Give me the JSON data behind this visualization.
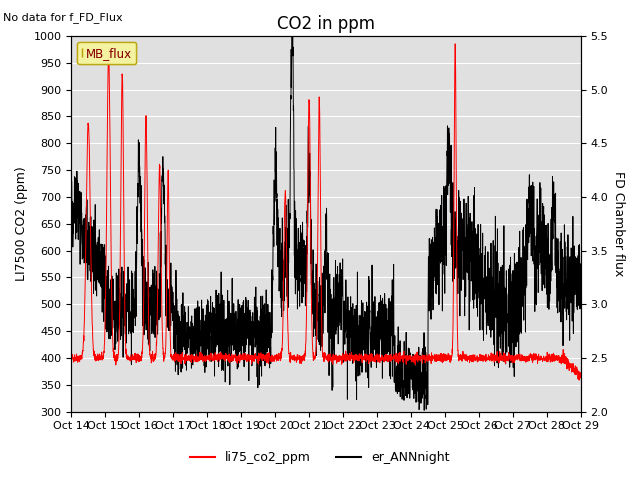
{
  "title": "CO2 in ppm",
  "ylabel_left": "LI7500 CO2 (ppm)",
  "ylabel_right": "FD Chamber flux",
  "xlabel": "",
  "ylim_left": [
    300,
    1000
  ],
  "ylim_right": [
    2.0,
    5.5
  ],
  "xtick_labels": [
    "Oct 14",
    "Oct 15",
    "Oct 16",
    "Oct 17",
    "Oct 18",
    "Oct 19",
    "Oct 20",
    "Oct 21",
    "Oct 22",
    "Oct 23",
    "Oct 24",
    "Oct 25",
    "Oct 26",
    "Oct 27",
    "Oct 28",
    "Oct 29"
  ],
  "no_data_text": "No data for f_FD_Flux",
  "legend_box_label": "MB_flux",
  "legend_items": [
    "li75_co2_ppm",
    "er_ANNnight"
  ],
  "legend_colors": [
    "red",
    "black"
  ],
  "bg_color": "#e0e0e0",
  "fig_bg": "#ffffff",
  "title_fontsize": 12,
  "axis_fontsize": 9,
  "tick_fontsize": 8
}
